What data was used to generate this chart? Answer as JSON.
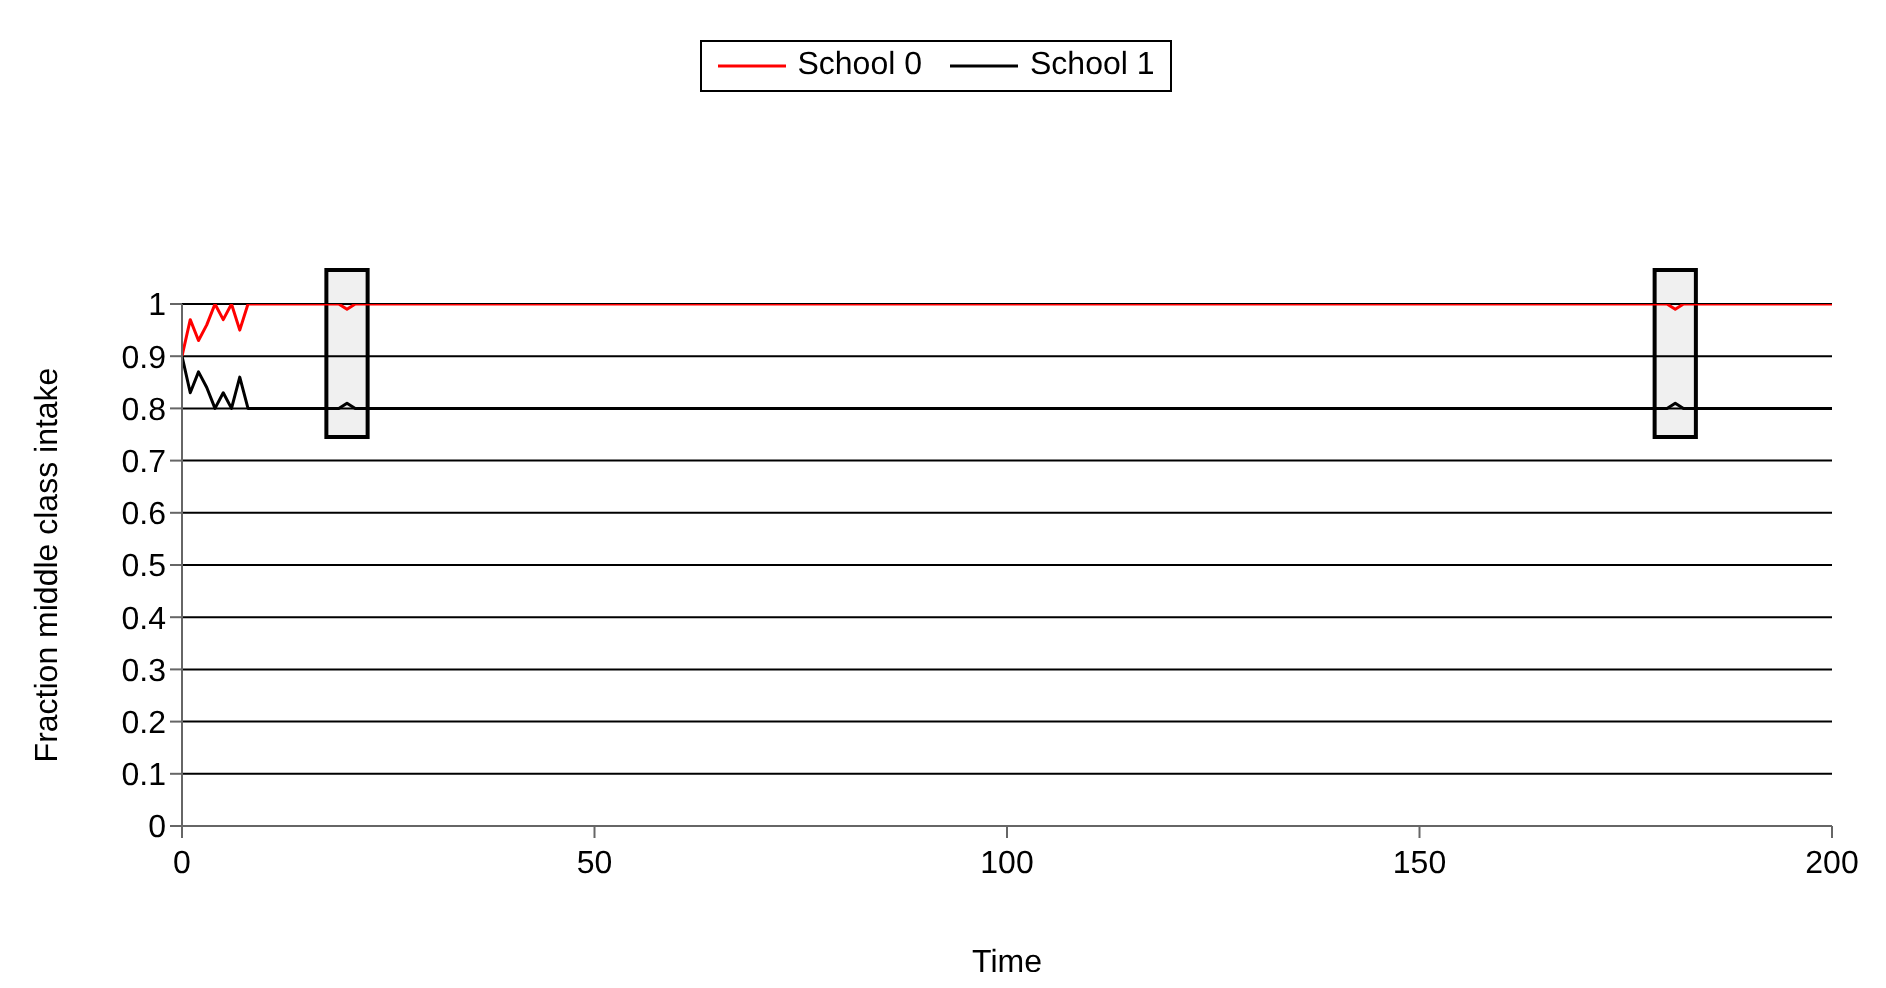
{
  "chart_data": {
    "type": "line",
    "xlabel": "Time",
    "ylabel": "Fraction middle class intake",
    "x": [
      0,
      1,
      2,
      3,
      4,
      5,
      6,
      7,
      8,
      19,
      20,
      21,
      180,
      181,
      182,
      200
    ],
    "series": [
      {
        "name": "School 0",
        "color": "#ff0000",
        "values": [
          0.9,
          0.97,
          0.93,
          0.96,
          1.0,
          0.97,
          1.0,
          0.95,
          1.0,
          1.0,
          0.99,
          1.0,
          1.0,
          0.99,
          1.0,
          1.0
        ]
      },
      {
        "name": "School 1",
        "color": "#000000",
        "values": [
          0.9,
          0.83,
          0.87,
          0.84,
          0.8,
          0.83,
          0.8,
          0.86,
          0.8,
          0.8,
          0.81,
          0.8,
          0.8,
          0.81,
          0.8,
          0.8
        ]
      }
    ],
    "xlim": [
      0,
      200
    ],
    "xticks": [
      0,
      50,
      100,
      150,
      200
    ],
    "ylim": [
      0,
      1
    ],
    "yticks": [
      0,
      0.1,
      0.2,
      0.3,
      0.4,
      0.5,
      0.6,
      0.7,
      0.8,
      0.9,
      1
    ],
    "bands": [
      {
        "axis": "x",
        "from": 17.5,
        "to": 22.5,
        "color": "#000000"
      },
      {
        "axis": "x",
        "from": 178.5,
        "to": 183.5,
        "color": "#000000"
      }
    ],
    "grid": "y",
    "legend": "top",
    "marker": "none",
    "line_style": "solid"
  }
}
